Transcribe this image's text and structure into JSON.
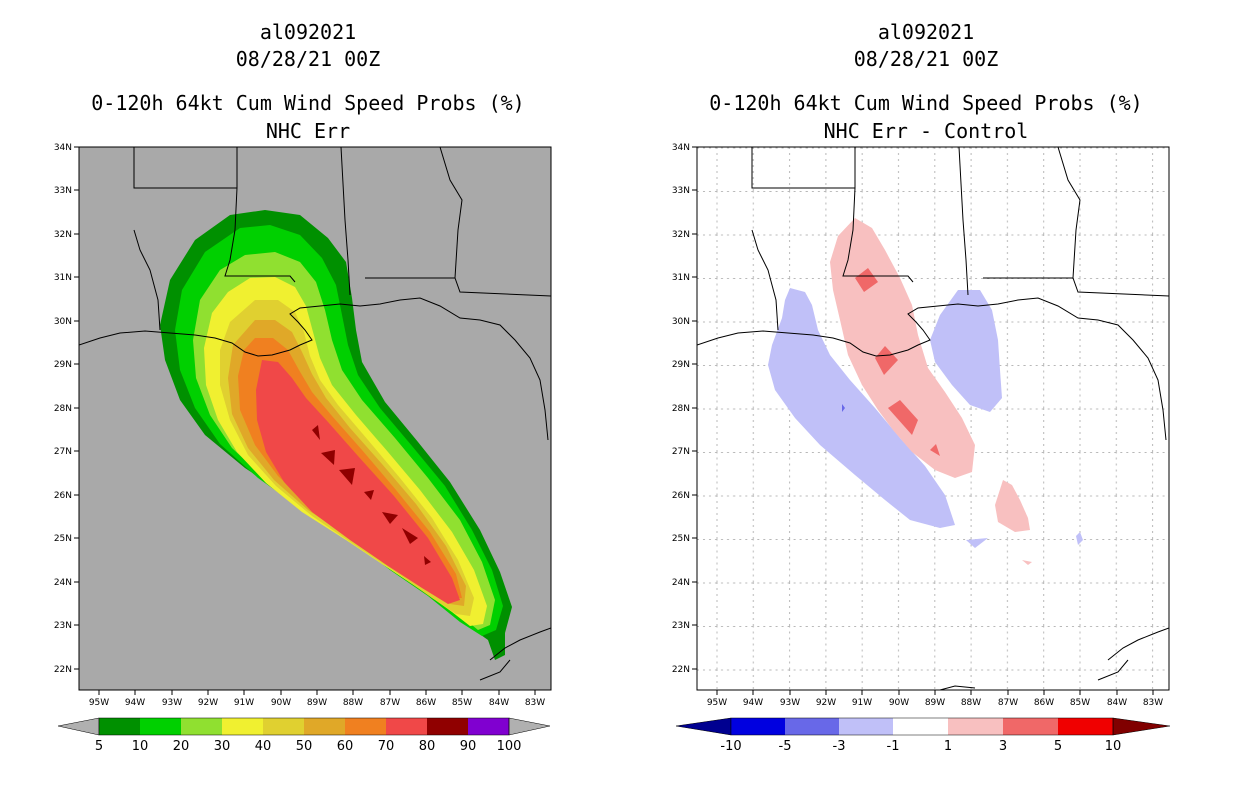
{
  "left_panel": {
    "storm_id": "al092021",
    "datetime": "08/28/21 00Z",
    "title": "0-120h 64kt Cum Wind Speed Probs (%)",
    "subtitle": "NHC Err",
    "lat_labels": [
      "34N",
      "33N",
      "32N",
      "31N",
      "30N",
      "29N",
      "28N",
      "27N",
      "26N",
      "25N",
      "24N",
      "23N",
      "22N"
    ],
    "lon_labels": [
      "95W",
      "94W",
      "93W",
      "92W",
      "91W",
      "90W",
      "89W",
      "88W",
      "87W",
      "86W",
      "85W",
      "84W",
      "83W"
    ],
    "colorbar": {
      "labels": [
        "5",
        "10",
        "20",
        "30",
        "40",
        "50",
        "60",
        "70",
        "80",
        "90",
        "100"
      ],
      "colors": [
        "#009000",
        "#00d000",
        "#90e030",
        "#f0f030",
        "#e0d030",
        "#e0a828",
        "#f08020",
        "#f04848",
        "#900000",
        "#8000d0"
      ],
      "ends": "#b0b0b0"
    }
  },
  "right_panel": {
    "storm_id": "al092021",
    "datetime": "08/28/21 00Z",
    "title": "0-120h 64kt Cum Wind Speed Probs (%)",
    "subtitle": "NHC Err - Control",
    "lat_labels": [
      "34N",
      "33N",
      "32N",
      "31N",
      "30N",
      "29N",
      "28N",
      "27N",
      "26N",
      "25N",
      "24N",
      "23N",
      "22N"
    ],
    "lon_labels": [
      "95W",
      "94W",
      "93W",
      "92W",
      "91W",
      "90W",
      "89W",
      "88W",
      "87W",
      "86W",
      "85W",
      "84W",
      "83W"
    ],
    "colorbar": {
      "labels": [
        "-10",
        "-5",
        "-3",
        "-1",
        "1",
        "3",
        "5",
        "10"
      ],
      "colors": [
        "#0000e0",
        "#6868e8",
        "#c0c0f8",
        "#ffffff",
        "#f8c0c0",
        "#f06868",
        "#f00000"
      ],
      "low_end": "#000090",
      "high_end": "#800000"
    }
  },
  "colors": {
    "land_gray": "#a9a9a9",
    "line": "#000000",
    "grid": "#b0b0b0"
  }
}
